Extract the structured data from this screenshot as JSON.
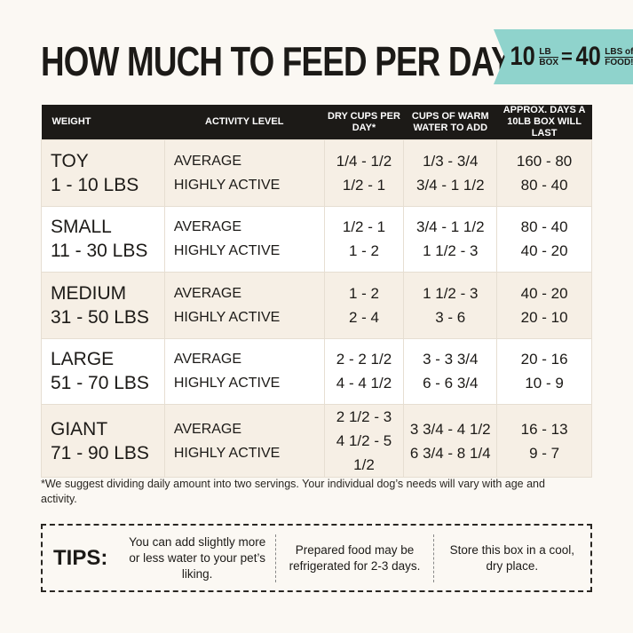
{
  "title": "HOW MUCH TO FEED PER DAY",
  "banner": {
    "left_num": "10",
    "left_top": "LB",
    "left_bottom": "BOX",
    "equals": "=",
    "right_num": "40",
    "right_top": "LBS of",
    "right_bottom": "FOOD!",
    "color": "#8fd3cc"
  },
  "table": {
    "headers": [
      "WEIGHT",
      "ACTIVITY LEVEL",
      "DRY CUPS PER DAY*",
      "CUPS OF WARM WATER TO ADD",
      "APPROX. DAYS A 10LB BOX WILL LAST"
    ],
    "rows": [
      {
        "size": "TOY",
        "range": "1 - 10 LBS",
        "levels": [
          "AVERAGE",
          "HIGHLY ACTIVE"
        ],
        "dry": [
          "1/4 - 1/2",
          "1/2 - 1"
        ],
        "water": [
          "1/3 - 3/4",
          "3/4 - 1 1/2"
        ],
        "days": [
          "160 - 80",
          "80 - 40"
        ]
      },
      {
        "size": "SMALL",
        "range": "11 - 30 LBS",
        "levels": [
          "AVERAGE",
          "HIGHLY ACTIVE"
        ],
        "dry": [
          "1/2 - 1",
          "1 - 2"
        ],
        "water": [
          "3/4 - 1 1/2",
          "1 1/2 - 3"
        ],
        "days": [
          "80 - 40",
          "40 - 20"
        ]
      },
      {
        "size": "MEDIUM",
        "range": "31 - 50 LBS",
        "levels": [
          "AVERAGE",
          "HIGHLY ACTIVE"
        ],
        "dry": [
          "1 - 2",
          "2 - 4"
        ],
        "water": [
          "1 1/2 - 3",
          "3 - 6"
        ],
        "days": [
          "40 - 20",
          "20 - 10"
        ]
      },
      {
        "size": "LARGE",
        "range": "51 - 70 LBS",
        "levels": [
          "AVERAGE",
          "HIGHLY ACTIVE"
        ],
        "dry": [
          "2 - 2 1/2",
          "4 - 4 1/2"
        ],
        "water": [
          "3 - 3 3/4",
          "6 - 6 3/4"
        ],
        "days": [
          "20 - 16",
          "10 - 9"
        ]
      },
      {
        "size": "GIANT",
        "range": "71 - 90 LBS",
        "levels": [
          "AVERAGE",
          "HIGHLY ACTIVE"
        ],
        "dry": [
          "2 1/2 - 3",
          "4 1/2 - 5 1/2"
        ],
        "water": [
          "3 3/4 - 4 1/2",
          "6 3/4 - 8 1/4"
        ],
        "days": [
          "16 - 13",
          "9 - 7"
        ]
      }
    ]
  },
  "note": "*We suggest dividing daily amount into two servings. Your individual dog’s needs will vary with age and activity.",
  "tips": {
    "label": "TIPS:",
    "items": [
      "You can add slightly more or less water to your pet’s liking.",
      "Prepared food may be refrigerated for 2-3 days.",
      "Store this box in a cool, dry place."
    ]
  }
}
